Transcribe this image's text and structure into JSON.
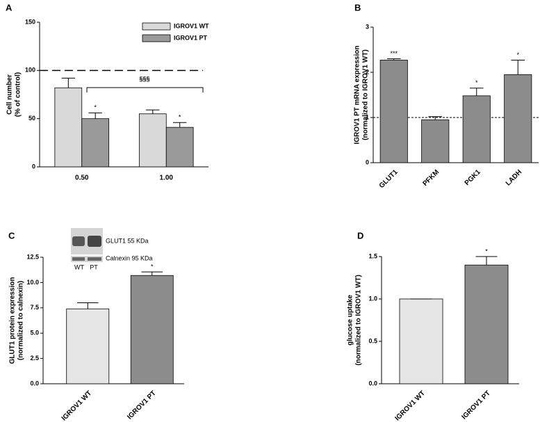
{
  "chart_data": [
    {
      "type": "bar",
      "label": "A",
      "ylabel": [
        "Cell number",
        "(% of control)"
      ],
      "categories": [
        "0.50",
        "1.00"
      ],
      "series": [
        {
          "name": "IGROV1 WT",
          "color": "#d9d9d9",
          "values": [
            82,
            55
          ],
          "errors": [
            10,
            4
          ]
        },
        {
          "name": "IGROV1 PT",
          "color": "#9a9a9a",
          "values": [
            50,
            41
          ],
          "errors": [
            6,
            5
          ],
          "significance": [
            "*",
            "*"
          ]
        }
      ],
      "ylim": [
        0,
        150
      ],
      "yticks": [
        0,
        50,
        100,
        150
      ],
      "reference_line": 100,
      "bracket_label": "§§§"
    },
    {
      "type": "bar",
      "label": "B",
      "ylabel": [
        "IGROV1 PT mRNA expression",
        "(normalized to IGROV1 WT)"
      ],
      "categories": [
        "GLUT1",
        "PFKM",
        "PGK1",
        "LADH"
      ],
      "color": "#8c8c8c",
      "values": [
        2.27,
        0.95,
        1.48,
        1.95
      ],
      "errors": [
        0.03,
        0.07,
        0.17,
        0.32
      ],
      "significance": [
        "***",
        null,
        "*",
        "*"
      ],
      "ylim": [
        0,
        3
      ],
      "yticks": [
        0,
        1,
        2,
        3
      ],
      "reference_line": 1
    },
    {
      "type": "bar",
      "label": "C",
      "ylabel": [
        "GLUT1 protein expression",
        "(normalized to calnexin)"
      ],
      "categories": [
        "IGROV1 WT",
        "IGROV1 PT"
      ],
      "colors": [
        "#e6e6e6",
        "#8c8c8c"
      ],
      "values": [
        7.4,
        10.7
      ],
      "errors": [
        0.6,
        0.35
      ],
      "significance": [
        null,
        "*"
      ],
      "ylim": [
        0,
        12.5
      ],
      "yticks": [
        {
          "value": 0,
          "label": "0.0"
        },
        2.5,
        {
          "value": 5,
          "label": "5.0"
        },
        7.5,
        {
          "value": 10,
          "label": "10.0"
        },
        12.5
      ],
      "inset_labels": [
        "GLUT1 55 KDa",
        "Calnexin 95 KDa",
        "WT",
        "PT"
      ]
    },
    {
      "type": "bar",
      "label": "D",
      "ylabel": [
        "glucose uptake",
        "(normalized to IGROV1 WT)"
      ],
      "categories": [
        "IGROV1 WT",
        "IGROV1 PT"
      ],
      "colors": [
        "#e6e6e6",
        "#8c8c8c"
      ],
      "values": [
        1.0,
        1.4
      ],
      "errors": [
        0,
        0.1
      ],
      "significance": [
        null,
        "*"
      ],
      "ylim": [
        0,
        1.5
      ],
      "yticks": [
        {
          "value": 0,
          "label": "0.0"
        },
        0.5,
        {
          "value": 1,
          "label": "1.0"
        },
        1.5
      ]
    }
  ]
}
